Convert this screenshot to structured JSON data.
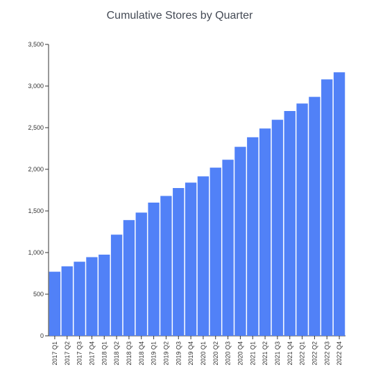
{
  "chart_data": {
    "type": "bar",
    "title": "Cumulative Stores by Quarter",
    "xlabel": "",
    "ylabel": "",
    "ylim": [
      0,
      3500
    ],
    "yticks": [
      0,
      500,
      1000,
      1500,
      2000,
      2500,
      3000,
      3500
    ],
    "ytick_labels": [
      "0",
      "500",
      "1,000",
      "1,500",
      "2,000",
      "2,500",
      "3,000",
      "3,500"
    ],
    "grid": false,
    "bar_color": "#5181f7",
    "categories": [
      "2017 Q1",
      "2017 Q2",
      "2017 Q3",
      "2017 Q4",
      "2018 Q1",
      "2018 Q2",
      "2018 Q3",
      "2018 Q4",
      "2019 Q1",
      "2019 Q2",
      "2019 Q3",
      "2019 Q4",
      "2020 Q1",
      "2020 Q2",
      "2020 Q3",
      "2020 Q4",
      "2021 Q1",
      "2021 Q2",
      "2021 Q3",
      "2021 Q4",
      "2022 Q1",
      "2022 Q2",
      "2022 Q3",
      "2022 Q4"
    ],
    "values": [
      770,
      835,
      890,
      945,
      975,
      1215,
      1390,
      1480,
      1600,
      1680,
      1775,
      1840,
      1915,
      2020,
      2115,
      2270,
      2385,
      2490,
      2595,
      2700,
      2790,
      2870,
      3080,
      3165
    ]
  }
}
